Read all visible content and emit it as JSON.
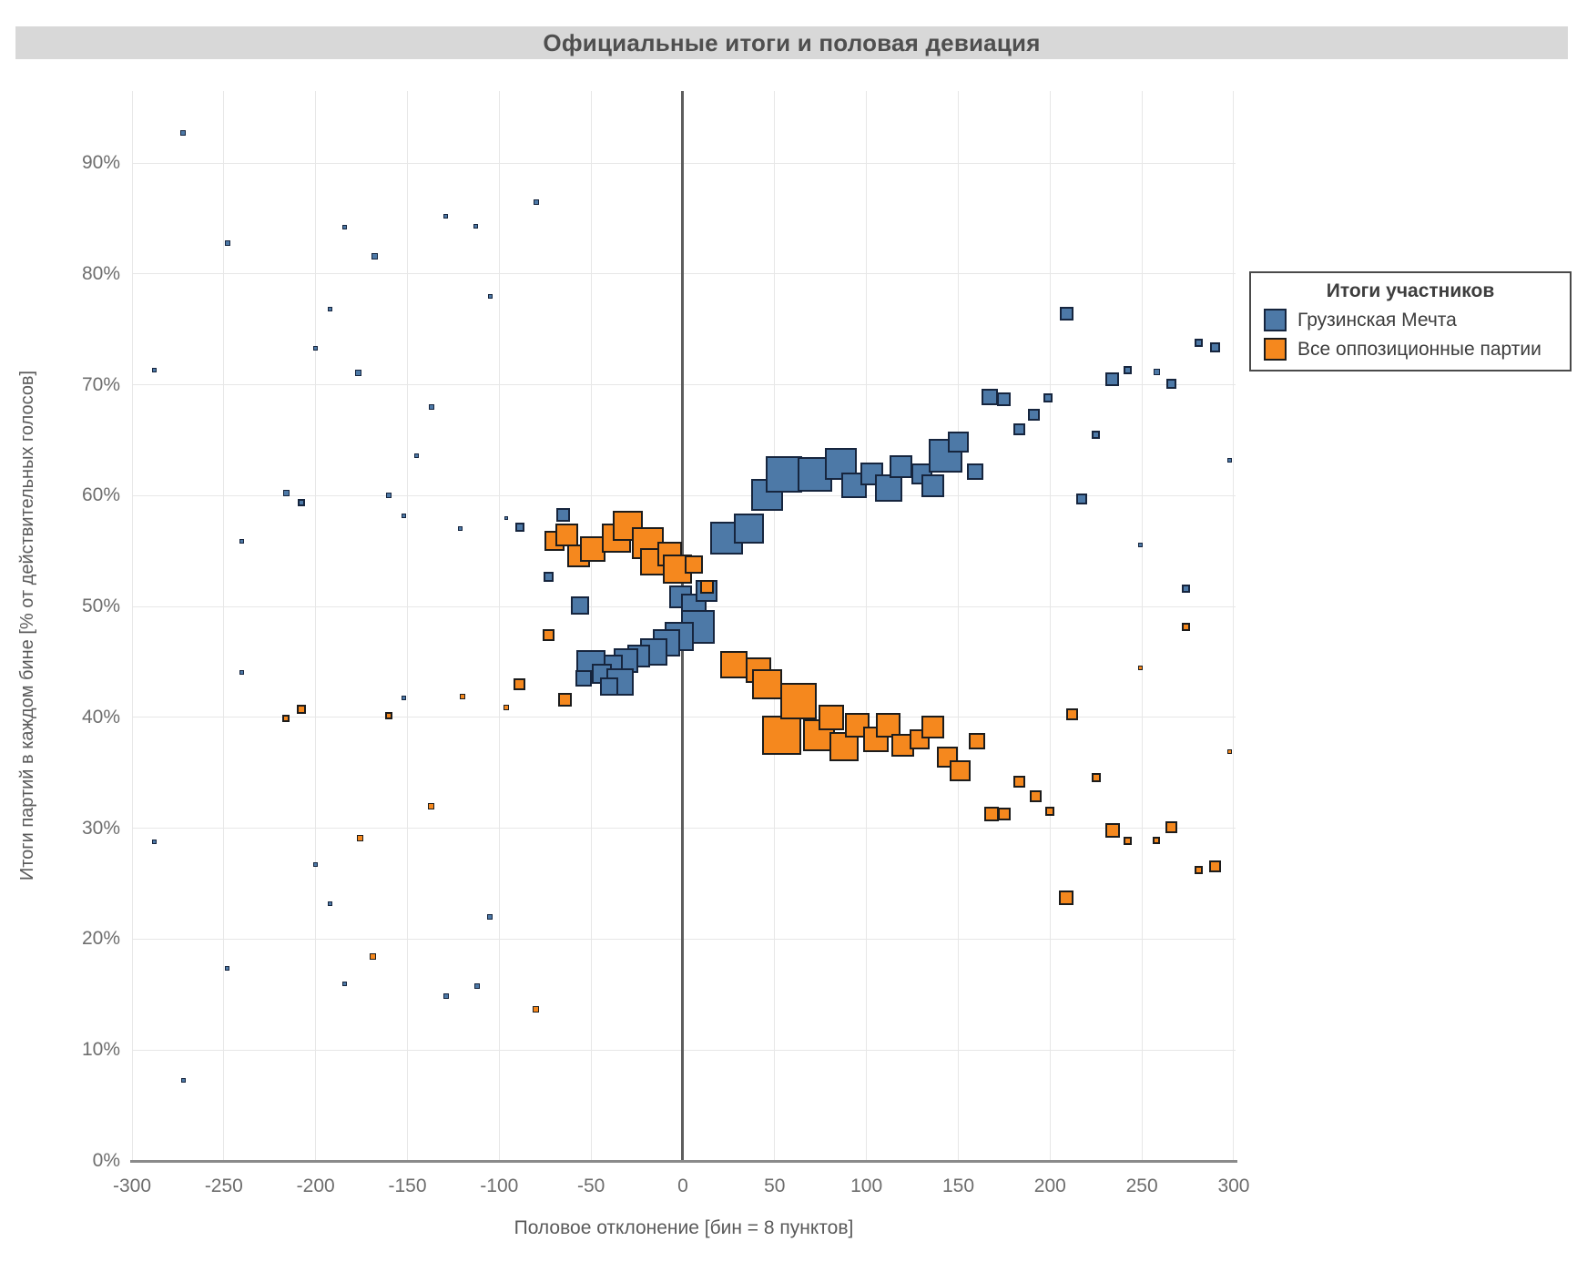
{
  "title": "Официальные итоги и половая девиация",
  "legend": {
    "title": "Итоги участников",
    "items": [
      {
        "label": "Грузинская Мечта",
        "color": "#4d79a7",
        "border": "#16253e"
      },
      {
        "label": "Все оппозиционные партии",
        "color": "#f5881e",
        "border": "#1c1c1c"
      }
    ]
  },
  "axes": {
    "x_label": "Половое отклонение [бин = 8 пунктов]",
    "y_label": "Итоги партий в каждом бине  [% от действительных голосов]",
    "x_ticks": [
      {
        "value": -300,
        "label": "-300"
      },
      {
        "value": -250,
        "label": "-250"
      },
      {
        "value": -200,
        "label": "-200"
      },
      {
        "value": -150,
        "label": "-150"
      },
      {
        "value": -100,
        "label": "-100"
      },
      {
        "value": -50,
        "label": "-50"
      },
      {
        "value": 0,
        "label": "0"
      },
      {
        "value": 50,
        "label": "50"
      },
      {
        "value": 100,
        "label": "100"
      },
      {
        "value": 150,
        "label": "150"
      },
      {
        "value": 200,
        "label": "200"
      },
      {
        "value": 250,
        "label": "250"
      },
      {
        "value": 300,
        "label": "300"
      }
    ],
    "y_ticks": [
      {
        "value": 0,
        "label": "0%"
      },
      {
        "value": 10,
        "label": "10%"
      },
      {
        "value": 20,
        "label": "20%"
      },
      {
        "value": 30,
        "label": "30%"
      },
      {
        "value": 40,
        "label": "40%"
      },
      {
        "value": 50,
        "label": "50%"
      },
      {
        "value": 60,
        "label": "60%"
      },
      {
        "value": 70,
        "label": "70%"
      },
      {
        "value": 80,
        "label": "80%"
      },
      {
        "value": 90,
        "label": "90%"
      }
    ]
  },
  "chart_data": {
    "type": "scatter",
    "marker": "square",
    "title": "Официальные итоги и половая девиация",
    "xlabel": "Половое отклонение [бин = 8 пунктов]",
    "ylabel": "Итоги партий в каждом бине [% от действительных голосов]",
    "xlim": [
      -300,
      301
    ],
    "ylim": [
      0,
      96.5
    ],
    "grid": true,
    "zero_line_x": 0,
    "legend_position": "right",
    "point_format": "[x_deviation, result_percent, marker_size_px]",
    "series": [
      {
        "name": "Грузинская Мечта",
        "fill": "#4d79a7",
        "stroke": "#16253e",
        "points": [
          [
            -272,
            92.7,
            6
          ],
          [
            -248,
            82.8,
            6
          ],
          [
            -184,
            84.2,
            5
          ],
          [
            -168,
            81.6,
            7
          ],
          [
            -129,
            85.2,
            5
          ],
          [
            -113,
            84.3,
            5
          ],
          [
            -80,
            86.5,
            6
          ],
          [
            -105,
            78.0,
            5
          ],
          [
            -192,
            76.8,
            5
          ],
          [
            -200,
            73.3,
            5
          ],
          [
            -288,
            71.3,
            5
          ],
          [
            -177,
            71.1,
            7
          ],
          [
            -137,
            68.0,
            6
          ],
          [
            -145,
            63.6,
            5
          ],
          [
            -160,
            60.0,
            6
          ],
          [
            -152,
            58.2,
            5
          ],
          [
            -216,
            60.2,
            7
          ],
          [
            -208,
            59.4,
            8
          ],
          [
            -240,
            55.9,
            5
          ],
          [
            -240,
            44.1,
            5
          ],
          [
            -152,
            41.8,
            5
          ],
          [
            -121,
            57.0,
            5
          ],
          [
            -96,
            58.0,
            4
          ],
          [
            -89,
            57.2,
            10
          ],
          [
            -73,
            52.7,
            11
          ],
          [
            -65,
            58.3,
            15
          ],
          [
            -288,
            28.8,
            5
          ],
          [
            -200,
            26.7,
            5
          ],
          [
            -192,
            23.2,
            5
          ],
          [
            -248,
            17.4,
            5
          ],
          [
            -184,
            16.0,
            5
          ],
          [
            -272,
            7.3,
            5
          ],
          [
            -105,
            22.0,
            6
          ],
          [
            -112,
            15.8,
            6
          ],
          [
            -129,
            14.9,
            6
          ],
          [
            -56,
            50.1,
            20
          ],
          [
            -1,
            50.9,
            25
          ],
          [
            6,
            50.0,
            28
          ],
          [
            13,
            51.4,
            24
          ],
          [
            8,
            48.2,
            37
          ],
          [
            -2,
            47.3,
            32
          ],
          [
            -9,
            46.7,
            30
          ],
          [
            -16,
            45.9,
            30
          ],
          [
            -24,
            45.5,
            25
          ],
          [
            -31,
            45.1,
            27
          ],
          [
            -39,
            44.6,
            25
          ],
          [
            -50,
            44.8,
            32
          ],
          [
            -44,
            43.9,
            22
          ],
          [
            -34,
            43.2,
            30
          ],
          [
            -40,
            42.8,
            20
          ],
          [
            -54,
            43.5,
            18
          ],
          [
            24,
            56.2,
            36
          ],
          [
            36,
            57.0,
            33
          ],
          [
            46,
            60.1,
            35
          ],
          [
            55,
            61.9,
            40
          ],
          [
            72,
            61.9,
            38
          ],
          [
            86,
            62.9,
            35
          ],
          [
            93,
            60.9,
            28
          ],
          [
            103,
            62.0,
            25
          ],
          [
            112,
            60.7,
            30
          ],
          [
            119,
            62.6,
            25
          ],
          [
            130,
            62.0,
            23
          ],
          [
            136,
            60.9,
            25
          ],
          [
            143,
            63.6,
            37
          ],
          [
            150,
            64.8,
            23
          ],
          [
            159,
            62.2,
            18
          ],
          [
            167,
            68.9,
            18
          ],
          [
            175,
            68.7,
            15
          ],
          [
            183,
            66.0,
            13
          ],
          [
            191,
            67.3,
            13
          ],
          [
            199,
            68.8,
            10
          ],
          [
            209,
            76.4,
            15
          ],
          [
            217,
            59.7,
            12
          ],
          [
            225,
            65.5,
            9
          ],
          [
            234,
            70.5,
            15
          ],
          [
            242,
            71.3,
            9
          ],
          [
            249,
            55.6,
            5
          ],
          [
            258,
            71.2,
            7
          ],
          [
            266,
            70.1,
            11
          ],
          [
            274,
            51.6,
            9
          ],
          [
            281,
            73.8,
            9
          ],
          [
            290,
            73.4,
            11
          ],
          [
            298,
            63.2,
            5
          ]
        ]
      },
      {
        "name": "Все оппозиционные партии",
        "fill": "#f5881e",
        "stroke": "#1c1c1c",
        "points": [
          [
            -70,
            55.9,
            22
          ],
          [
            -63,
            56.5,
            25
          ],
          [
            -57,
            54.6,
            25
          ],
          [
            -49,
            55.2,
            28
          ],
          [
            -36,
            56.2,
            32
          ],
          [
            -30,
            57.3,
            33
          ],
          [
            -19,
            55.7,
            35
          ],
          [
            -16,
            54.0,
            30
          ],
          [
            -7,
            54.7,
            27
          ],
          [
            -3,
            53.4,
            32
          ],
          [
            6,
            53.8,
            20
          ],
          [
            13,
            51.8,
            15
          ],
          [
            -216,
            39.9,
            8
          ],
          [
            -208,
            40.7,
            10
          ],
          [
            -160,
            40.2,
            8
          ],
          [
            -137,
            32.0,
            7
          ],
          [
            -176,
            29.1,
            7
          ],
          [
            -169,
            18.4,
            7
          ],
          [
            -120,
            41.9,
            6
          ],
          [
            -96,
            40.9,
            6
          ],
          [
            -89,
            43.0,
            13
          ],
          [
            -73,
            47.4,
            13
          ],
          [
            -64,
            41.6,
            15
          ],
          [
            -80,
            13.7,
            7
          ],
          [
            28,
            44.8,
            30
          ],
          [
            41,
            44.3,
            28
          ],
          [
            46,
            43.0,
            33
          ],
          [
            54,
            38.4,
            43
          ],
          [
            63,
            41.5,
            40
          ],
          [
            74,
            38.4,
            35
          ],
          [
            81,
            40.0,
            28
          ],
          [
            88,
            37.4,
            32
          ],
          [
            95,
            39.3,
            27
          ],
          [
            105,
            38.0,
            28
          ],
          [
            112,
            39.3,
            27
          ],
          [
            120,
            37.5,
            25
          ],
          [
            129,
            38.0,
            22
          ],
          [
            136,
            39.1,
            25
          ],
          [
            144,
            36.4,
            23
          ],
          [
            151,
            35.2,
            23
          ],
          [
            160,
            37.9,
            18
          ],
          [
            168,
            31.3,
            16
          ],
          [
            175,
            31.3,
            14
          ],
          [
            183,
            34.2,
            13
          ],
          [
            192,
            32.9,
            13
          ],
          [
            200,
            31.5,
            10
          ],
          [
            212,
            40.3,
            13
          ],
          [
            209,
            23.7,
            16
          ],
          [
            225,
            34.6,
            10
          ],
          [
            234,
            29.8,
            16
          ],
          [
            242,
            28.9,
            9
          ],
          [
            249,
            44.5,
            5
          ],
          [
            258,
            28.9,
            8
          ],
          [
            266,
            30.1,
            13
          ],
          [
            274,
            48.2,
            9
          ],
          [
            281,
            26.2,
            9
          ],
          [
            290,
            26.6,
            13
          ],
          [
            298,
            36.9,
            5
          ]
        ]
      }
    ]
  }
}
